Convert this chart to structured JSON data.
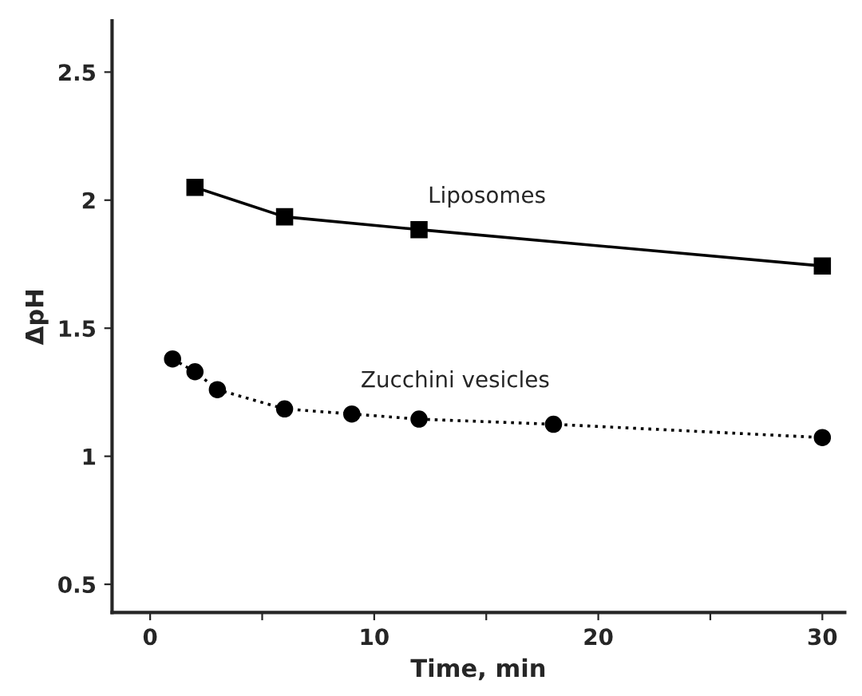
{
  "chart_data": {
    "type": "line",
    "xlabel": "Time, min",
    "ylabel": "ΔpH",
    "xlim": [
      -1.7,
      31
    ],
    "xticks": [
      0,
      {
        "value": 5,
        "label": null
      },
      10,
      {
        "value": 15,
        "label": null
      },
      20,
      {
        "value": 25,
        "label": null
      },
      30
    ],
    "ylim": [
      0.39,
      2.7
    ],
    "yticks": [
      0.5,
      1,
      1.5,
      2,
      2.5
    ],
    "grid": false,
    "legend": false,
    "series": [
      {
        "name": "Liposomes",
        "color": "#000000",
        "marker": "square",
        "line_style": "solid",
        "x": [
          2,
          6,
          12,
          30
        ],
        "values": [
          2.05,
          1.935,
          1.885,
          1.743
        ]
      },
      {
        "name": "Zucchini vesicles",
        "color": "#000000",
        "marker": "circle",
        "line_style": "dotted",
        "x": [
          1,
          2,
          3,
          6,
          9,
          12,
          18,
          30
        ],
        "values": [
          1.38,
          1.33,
          1.26,
          1.185,
          1.165,
          1.145,
          1.125,
          1.073
        ]
      }
    ]
  }
}
